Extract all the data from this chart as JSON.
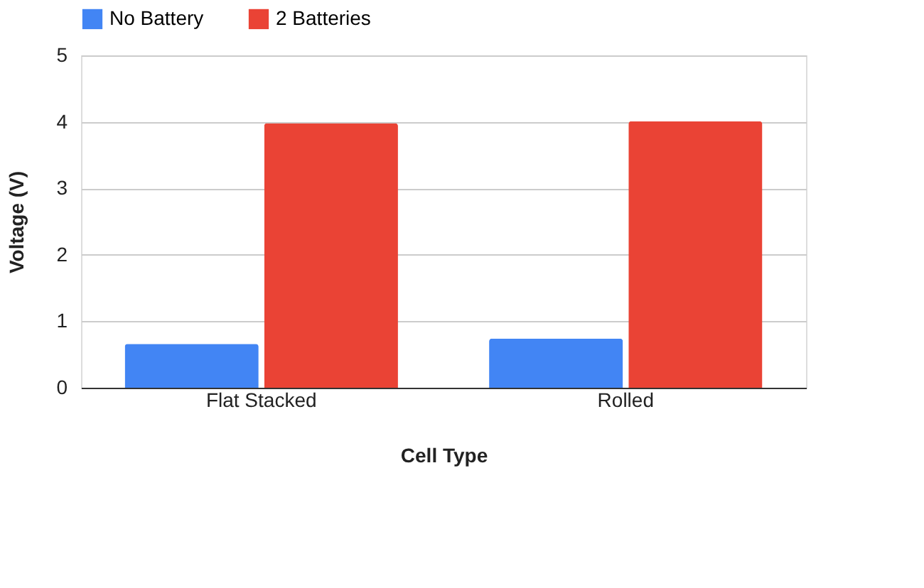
{
  "chart_data": {
    "type": "bar",
    "xlabel": "Cell Type",
    "ylabel": "Voltage (V)",
    "categories": [
      "Flat Stacked",
      "Rolled"
    ],
    "series": [
      {
        "name": "No Battery",
        "color": "#4285f4",
        "values": [
          0.66,
          0.74
        ]
      },
      {
        "name": "2 Batteries",
        "color": "#ea4335",
        "values": [
          3.98,
          4.01
        ]
      }
    ],
    "ylim": [
      0,
      5
    ],
    "yticks": [
      0,
      1,
      2,
      3,
      4,
      5
    ],
    "grid": "y",
    "legend": "top"
  }
}
